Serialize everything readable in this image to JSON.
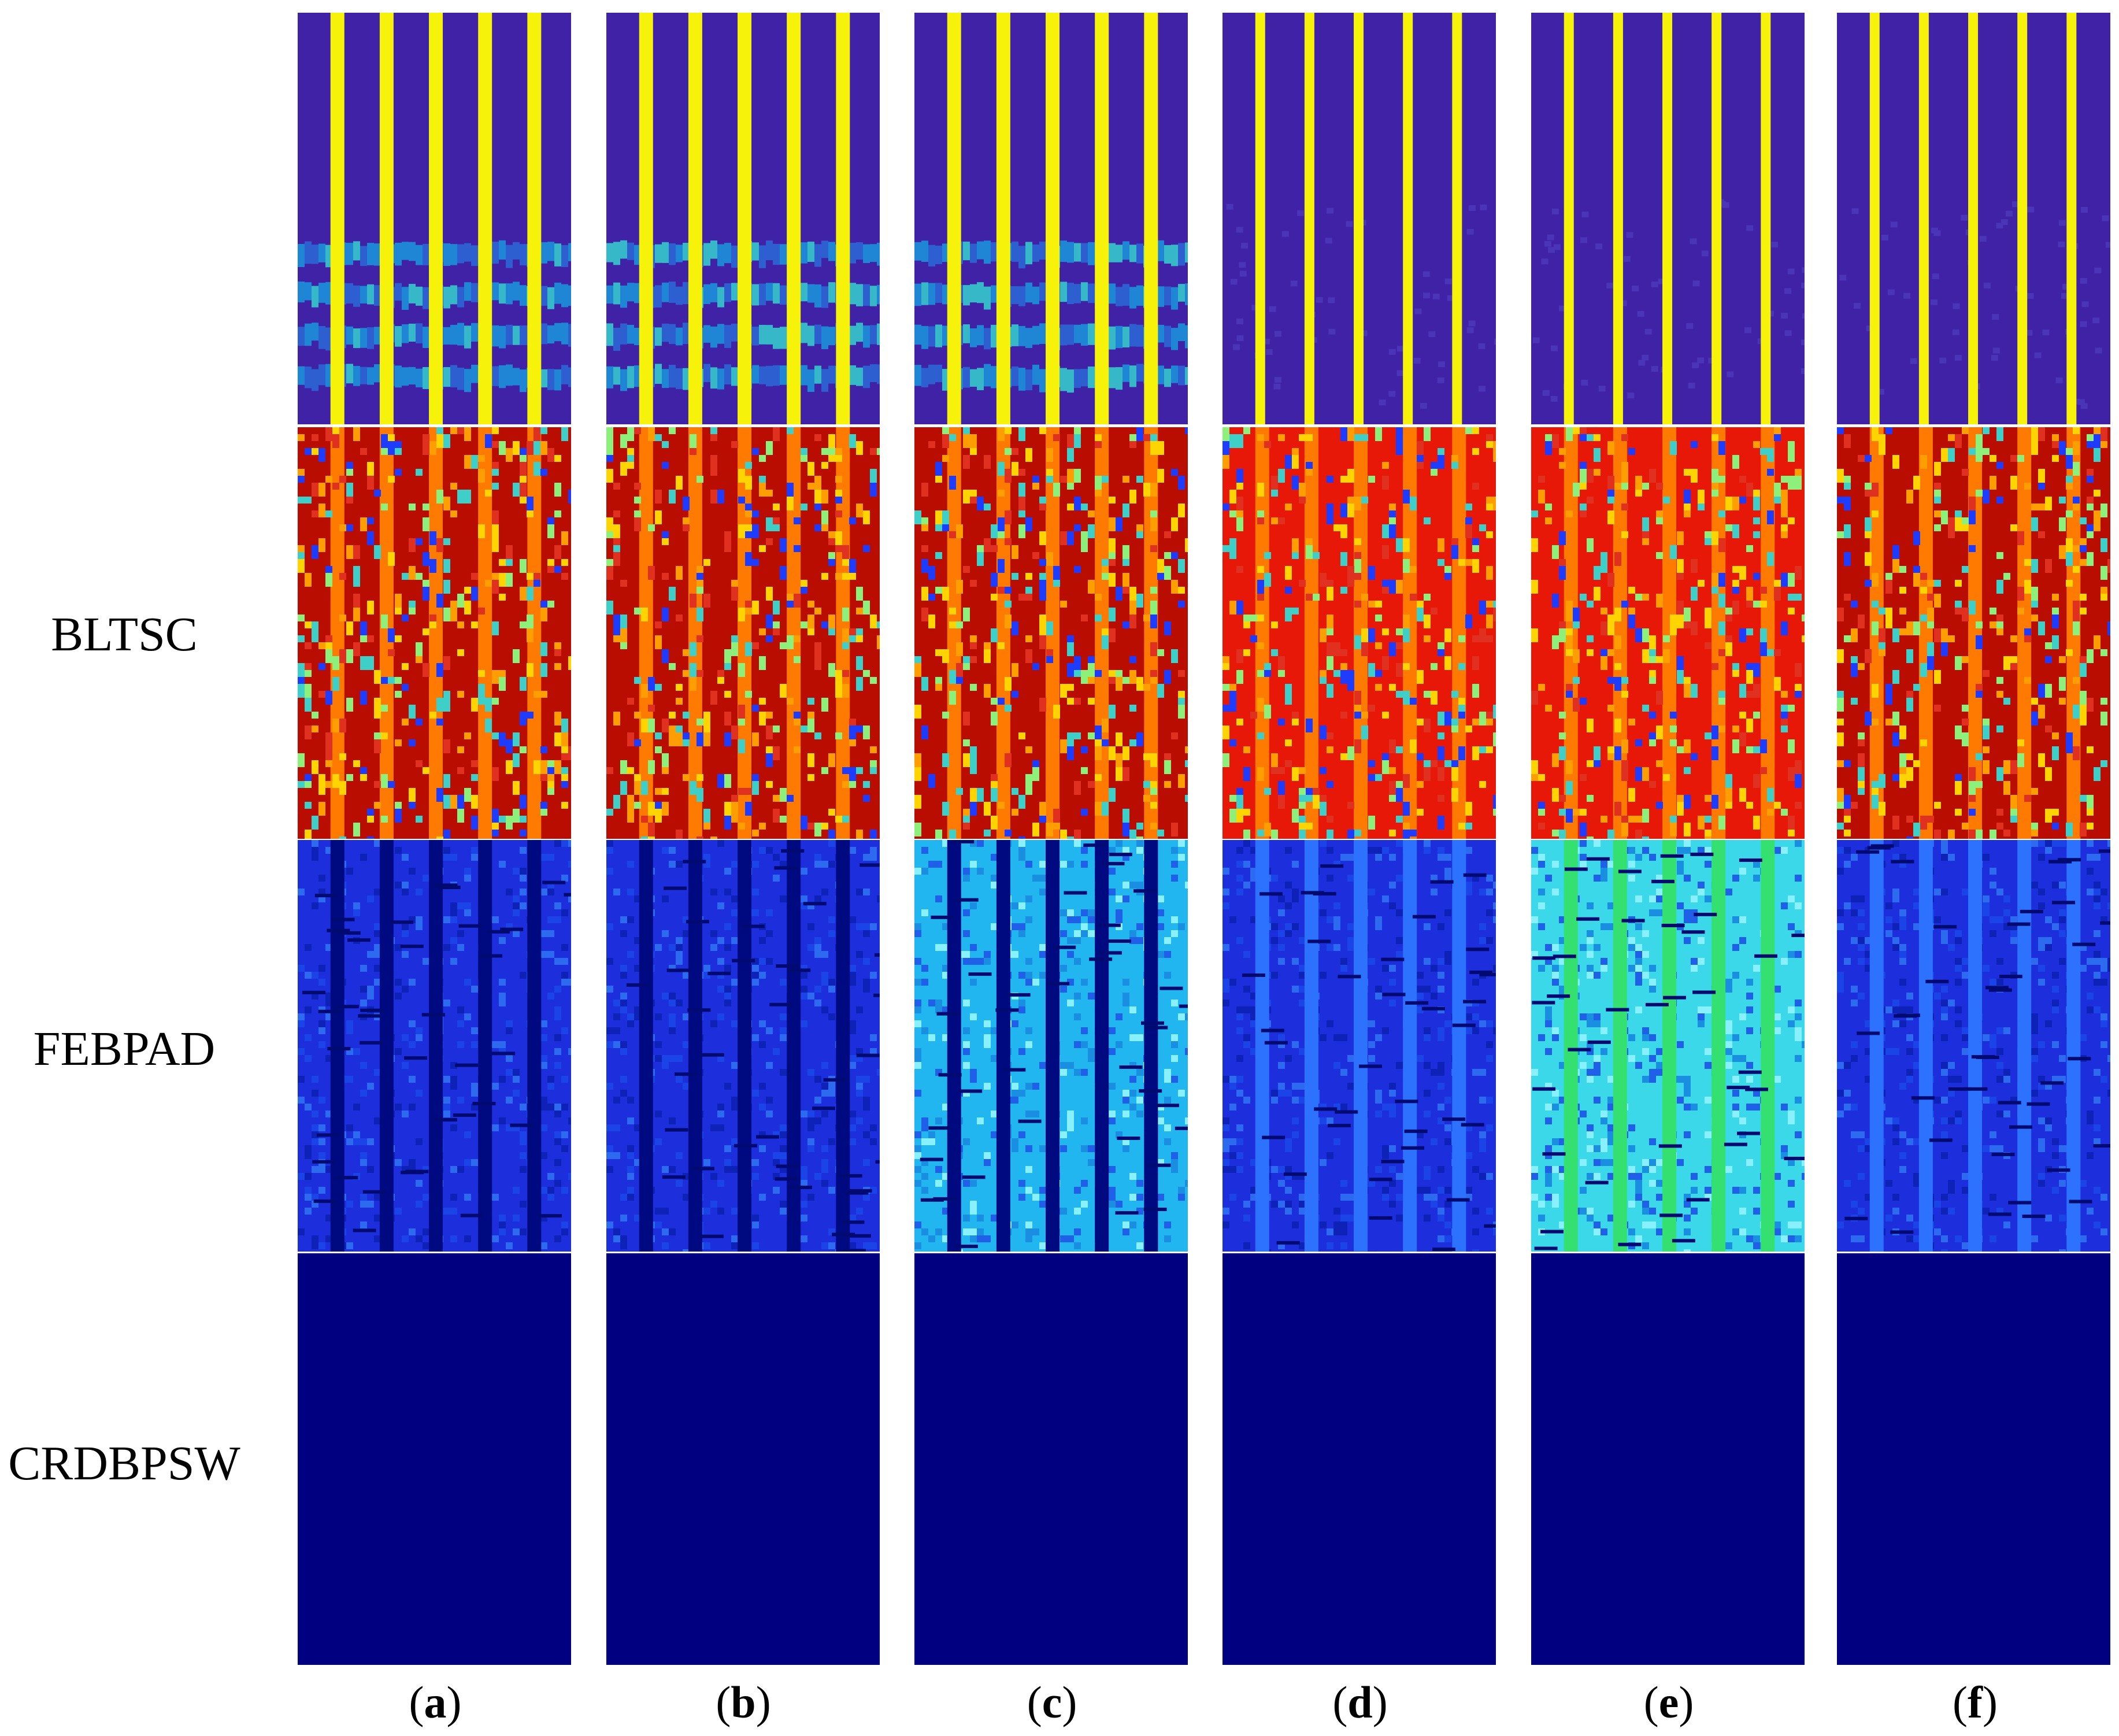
{
  "row_labels": [
    "",
    "BLTSC",
    "FEBPAD",
    "CRDBPSW"
  ],
  "panel_labels": [
    {
      "open": "(",
      "letter": "a",
      "close": ")"
    },
    {
      "open": "(",
      "letter": "b",
      "close": ")"
    },
    {
      "open": "(",
      "letter": "c",
      "close": ")"
    },
    {
      "open": "(",
      "letter": "d",
      "close": ")"
    },
    {
      "open": "(",
      "letter": "e",
      "close": ")"
    },
    {
      "open": "(",
      "letter": "f",
      "close": ")"
    }
  ],
  "panels": [
    [
      "detection-map-a-row1",
      "detection-map-a-bltsc",
      "detection-map-a-febpad",
      "detection-map-a-crdbpsw"
    ],
    [
      "detection-map-b-row1",
      "detection-map-b-bltsc",
      "detection-map-b-febpad",
      "detection-map-b-crdbpsw"
    ],
    [
      "detection-map-c-row1",
      "detection-map-c-bltsc",
      "detection-map-c-febpad",
      "detection-map-c-crdbpsw"
    ],
    [
      "detection-map-d-row1",
      "detection-map-d-bltsc",
      "detection-map-d-febpad",
      "detection-map-d-crdbpsw"
    ],
    [
      "detection-map-e-row1",
      "detection-map-e-bltsc",
      "detection-map-e-febpad",
      "detection-map-e-crdbpsw"
    ],
    [
      "detection-map-f-row1",
      "detection-map-f-bltsc",
      "detection-map-f-febpad",
      "detection-map-f-crdbpsw"
    ]
  ],
  "colors": {
    "background_blue": "#3f22a6",
    "stripe_yellow": "#f7f20a",
    "red_bg": "#b80d00",
    "red_bg_alt": "#e81808",
    "orange_stripe": "#ff7a00",
    "febpad_bg": "#1d2fdc",
    "febpad_light": "#22b6f0",
    "febpad_dark": "#000a80",
    "crdbpsw_blue": "#000080"
  }
}
